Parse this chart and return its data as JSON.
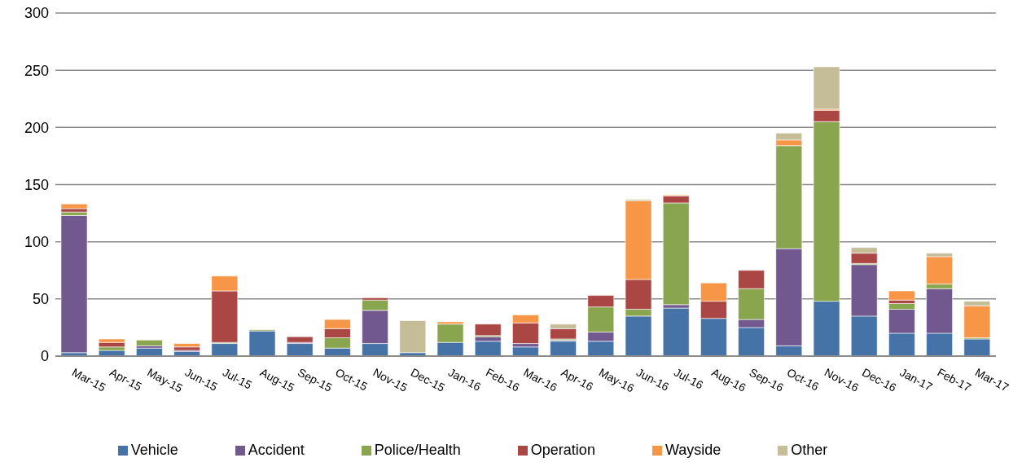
{
  "chart_data": {
    "type": "bar",
    "stacked": true,
    "categories": [
      "Mar-15",
      "Apr-15",
      "May-15",
      "Jun-15",
      "Jul-15",
      "Aug-15",
      "Sep-15",
      "Oct-15",
      "Nov-15",
      "Dec-15",
      "Jan-16",
      "Feb-16",
      "Mar-16",
      "Apr-16",
      "May-16",
      "Jun-16",
      "Jul-16",
      "Aug-16",
      "Sep-16",
      "Oct-16",
      "Nov-16",
      "Dec-16",
      "Jan-17",
      "Feb-17",
      "Mar-17"
    ],
    "series": [
      {
        "name": "Vehicle",
        "color": "#4572a7",
        "values": [
          3,
          5,
          7,
          4,
          11,
          22,
          11,
          7,
          11,
          3,
          12,
          13,
          8,
          13,
          13,
          35,
          42,
          33,
          25,
          9,
          48,
          35,
          20,
          20,
          15
        ]
      },
      {
        "name": "Accident",
        "color": "#71588f",
        "values": [
          120,
          0,
          2,
          1,
          0,
          0,
          1,
          0,
          29,
          0,
          0,
          4,
          3,
          1,
          8,
          0,
          3,
          0,
          7,
          85,
          0,
          45,
          21,
          39,
          0
        ]
      },
      {
        "name": "Police/Health",
        "color": "#89a54e",
        "values": [
          3,
          3,
          5,
          0,
          1,
          1,
          0,
          9,
          9,
          0,
          16,
          1,
          0,
          1,
          22,
          6,
          89,
          0,
          27,
          90,
          157,
          1,
          5,
          4,
          1
        ]
      },
      {
        "name": "Operation",
        "color": "#aa4643",
        "values": [
          3,
          4,
          0,
          3,
          45,
          0,
          5,
          8,
          2,
          0,
          0,
          10,
          18,
          9,
          10,
          26,
          6,
          15,
          16,
          0,
          10,
          9,
          3,
          0,
          0
        ]
      },
      {
        "name": "Wayside",
        "color": "#f79646",
        "values": [
          4,
          3,
          0,
          3,
          13,
          0,
          0,
          8,
          0,
          0,
          2,
          0,
          7,
          0,
          0,
          69,
          1,
          16,
          0,
          5,
          1,
          0,
          8,
          24,
          28
        ]
      },
      {
        "name": "Other",
        "color": "#c4bd97",
        "values": [
          0,
          0,
          0,
          0,
          0,
          0,
          0,
          0,
          0,
          28,
          0,
          0,
          0,
          4,
          0,
          1,
          0,
          0,
          0,
          6,
          37,
          5,
          0,
          3,
          4
        ]
      }
    ],
    "ylim": [
      0,
      300
    ],
    "yticks": [
      0,
      50,
      100,
      150,
      200,
      250,
      300
    ],
    "grid": "y",
    "legend": "bottom"
  }
}
